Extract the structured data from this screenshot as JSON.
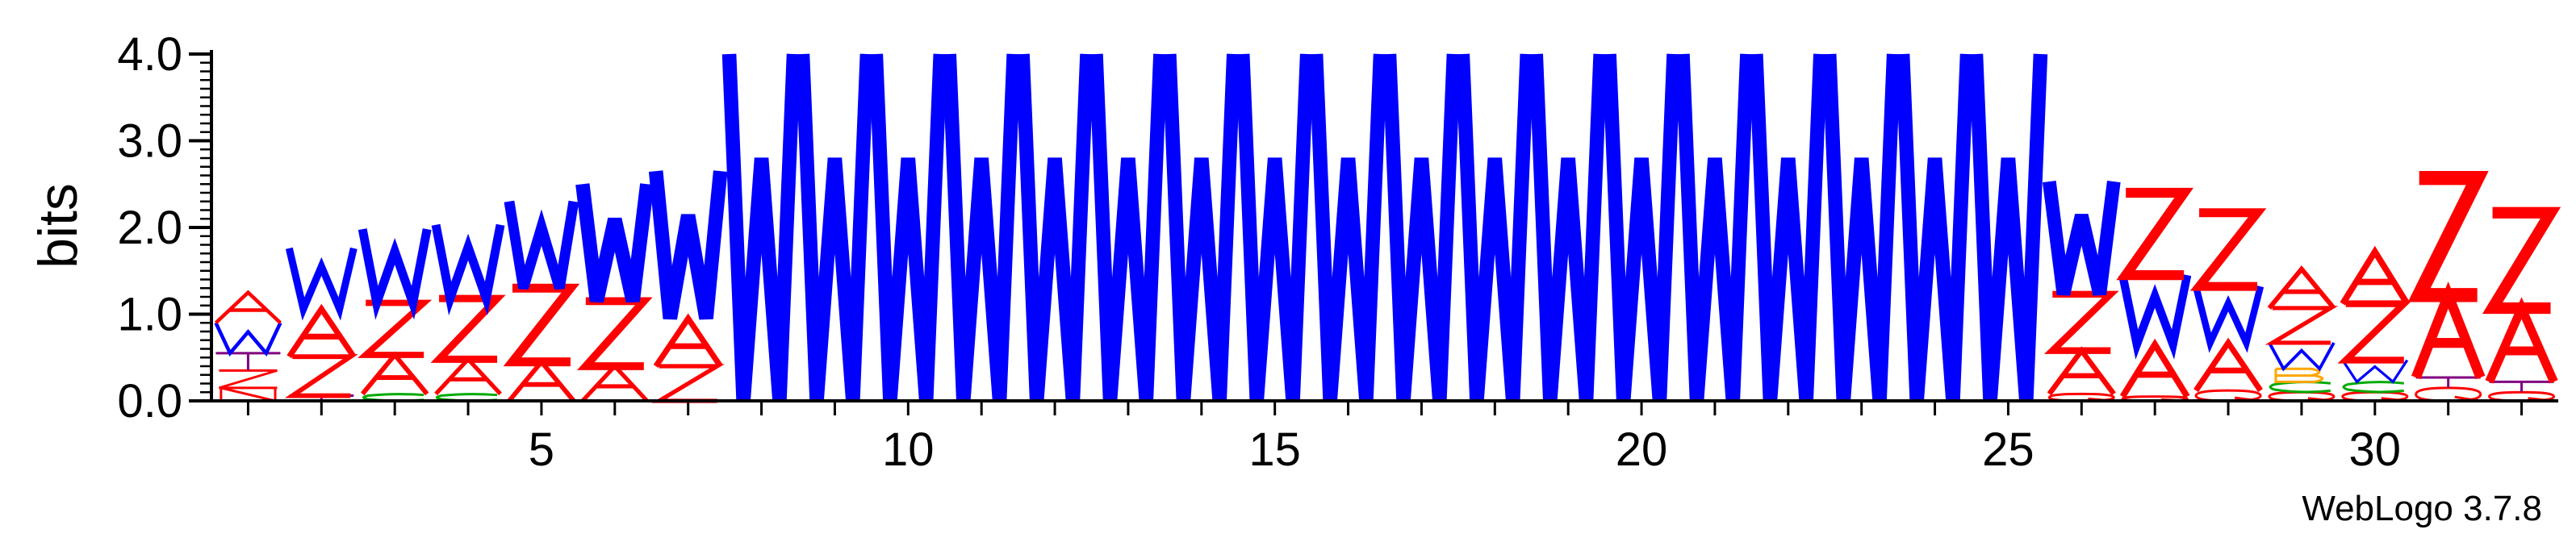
{
  "chart_data": {
    "type": "sequence-logo",
    "title": "",
    "ylabel": "bits",
    "xlabel": "",
    "ylim": [
      0,
      4.0
    ],
    "y_ticks": [
      "0.0",
      "1.0",
      "2.0",
      "3.0",
      "4.0"
    ],
    "x_tick_labels": [
      "5",
      "10",
      "15",
      "20",
      "25",
      "30"
    ],
    "x_tick_positions": [
      5,
      10,
      15,
      20,
      25,
      30
    ],
    "num_positions": 32,
    "footer": "WebLogo 3.7.8",
    "colors": {
      "A": "#ff0000",
      "Z": "#ff0000",
      "W": "#0000ff",
      "T": "#800080",
      "G": "#ffa500",
      "C": "#00aa00",
      "B": "#ffa500",
      "Q": "#ff0000",
      "N": "#ff0000"
    },
    "stacks": [
      {
        "pos": 1,
        "letters": [
          [
            "N",
            0.15
          ],
          [
            "Z",
            0.2
          ],
          [
            "T",
            0.2
          ],
          [
            "W",
            0.35
          ],
          [
            "A",
            0.35
          ]
        ]
      },
      {
        "pos": 2,
        "letters": [
          [
            "T",
            0.06
          ],
          [
            "Z",
            0.45
          ],
          [
            "A",
            0.55
          ],
          [
            "W",
            0.7
          ]
        ]
      },
      {
        "pos": 3,
        "letters": [
          [
            "C",
            0.08
          ],
          [
            "A",
            0.45
          ],
          [
            "Z",
            0.6
          ],
          [
            "W",
            0.85
          ]
        ]
      },
      {
        "pos": 4,
        "letters": [
          [
            "C",
            0.08
          ],
          [
            "A",
            0.4
          ],
          [
            "Z",
            0.7
          ],
          [
            "W",
            0.85
          ]
        ]
      },
      {
        "pos": 5,
        "letters": [
          [
            "A",
            0.45
          ],
          [
            "Z",
            0.85
          ],
          [
            "W",
            1.0
          ]
        ]
      },
      {
        "pos": 6,
        "letters": [
          [
            "A",
            0.4
          ],
          [
            "Z",
            0.75
          ],
          [
            "W",
            1.35
          ]
        ]
      },
      {
        "pos": 7,
        "letters": [
          [
            "Z",
            0.4
          ],
          [
            "A",
            0.55
          ],
          [
            "W",
            1.7
          ]
        ]
      },
      {
        "pos": 8,
        "letters": [
          [
            "W",
            4.0
          ]
        ]
      },
      {
        "pos": 9,
        "letters": [
          [
            "W",
            4.0
          ]
        ]
      },
      {
        "pos": 10,
        "letters": [
          [
            "W",
            4.0
          ]
        ]
      },
      {
        "pos": 11,
        "letters": [
          [
            "W",
            4.0
          ]
        ]
      },
      {
        "pos": 12,
        "letters": [
          [
            "W",
            4.0
          ]
        ]
      },
      {
        "pos": 13,
        "letters": [
          [
            "W",
            4.0
          ]
        ]
      },
      {
        "pos": 14,
        "letters": [
          [
            "W",
            4.0
          ]
        ]
      },
      {
        "pos": 15,
        "letters": [
          [
            "W",
            4.0
          ]
        ]
      },
      {
        "pos": 16,
        "letters": [
          [
            "W",
            4.0
          ]
        ]
      },
      {
        "pos": 17,
        "letters": [
          [
            "W",
            4.0
          ]
        ]
      },
      {
        "pos": 18,
        "letters": [
          [
            "W",
            4.0
          ]
        ]
      },
      {
        "pos": 19,
        "letters": [
          [
            "W",
            4.0
          ]
        ]
      },
      {
        "pos": 20,
        "letters": [
          [
            "W",
            4.0
          ]
        ]
      },
      {
        "pos": 21,
        "letters": [
          [
            "W",
            4.0
          ]
        ]
      },
      {
        "pos": 22,
        "letters": [
          [
            "W",
            4.0
          ]
        ]
      },
      {
        "pos": 23,
        "letters": [
          [
            "W",
            4.0
          ]
        ]
      },
      {
        "pos": 24,
        "letters": [
          [
            "W",
            4.0
          ]
        ]
      },
      {
        "pos": 25,
        "letters": [
          [
            "W",
            4.0
          ]
        ]
      },
      {
        "pos": 26,
        "letters": [
          [
            "Q",
            0.08
          ],
          [
            "A",
            0.5
          ],
          [
            "Z",
            0.65
          ],
          [
            "W",
            1.3
          ]
        ]
      },
      {
        "pos": 27,
        "letters": [
          [
            "Q",
            0.05
          ],
          [
            "A",
            0.6
          ],
          [
            "W",
            0.8
          ],
          [
            "Z",
            0.95
          ]
        ]
      },
      {
        "pos": 28,
        "letters": [
          [
            "Q",
            0.12
          ],
          [
            "A",
            0.55
          ],
          [
            "W",
            0.65
          ],
          [
            "Z",
            0.85
          ]
        ]
      },
      {
        "pos": 29,
        "letters": [
          [
            "Q",
            0.1
          ],
          [
            "C",
            0.12
          ],
          [
            "B",
            0.15
          ],
          [
            "W",
            0.3
          ],
          [
            "Z",
            0.4
          ],
          [
            "A",
            0.45
          ]
        ]
      },
      {
        "pos": 30,
        "letters": [
          [
            "Q",
            0.1
          ],
          [
            "C",
            0.12
          ],
          [
            "W",
            0.25
          ],
          [
            "Z",
            0.65
          ],
          [
            "A",
            0.6
          ]
        ]
      },
      {
        "pos": 31,
        "letters": [
          [
            "Q",
            0.15
          ],
          [
            "T",
            0.12
          ],
          [
            "A",
            0.95
          ],
          [
            "Z",
            1.35
          ]
        ]
      },
      {
        "pos": 32,
        "letters": [
          [
            "Q",
            0.1
          ],
          [
            "T",
            0.12
          ],
          [
            "A",
            0.85
          ],
          [
            "Z",
            1.1
          ]
        ]
      }
    ]
  }
}
